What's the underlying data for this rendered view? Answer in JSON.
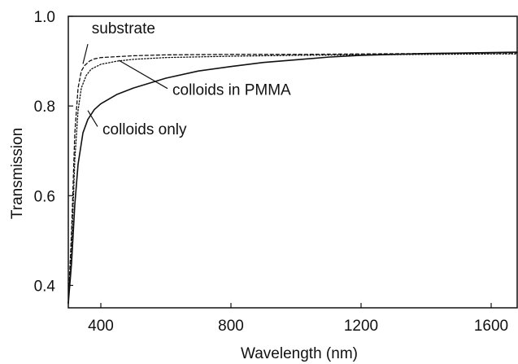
{
  "chart_data": {
    "type": "line",
    "xlabel": "Wavelength (nm)",
    "ylabel": "Transmission",
    "xlim": [
      300,
      1680
    ],
    "ylim": [
      0.35,
      1.0
    ],
    "x_ticks": [
      400,
      800,
      1200,
      1600
    ],
    "x_tick_labels": [
      "400",
      "800",
      "1200",
      "1600"
    ],
    "y_ticks": [
      0.4,
      0.6,
      0.8,
      1.0
    ],
    "y_tick_labels": [
      "0.4",
      "0.6",
      "0.8",
      "1.0"
    ],
    "grid": false,
    "series": [
      {
        "name": "substrate",
        "line_style": "dashed",
        "color": "#111111",
        "x": [
          300,
          310,
          320,
          330,
          340,
          350,
          365,
          380,
          400,
          450,
          500,
          600,
          800,
          1000,
          1200,
          1400,
          1600,
          1680
        ],
        "y": [
          0.36,
          0.52,
          0.74,
          0.84,
          0.878,
          0.89,
          0.9,
          0.905,
          0.908,
          0.91,
          0.912,
          0.914,
          0.915,
          0.915,
          0.916,
          0.917,
          0.918,
          0.918
        ]
      },
      {
        "name": "colloids in PMMA",
        "line_style": "dotted",
        "color": "#111111",
        "x": [
          300,
          310,
          320,
          330,
          340,
          355,
          370,
          400,
          450,
          500,
          600,
          800,
          1000,
          1200,
          1400,
          1600,
          1680
        ],
        "y": [
          0.36,
          0.48,
          0.68,
          0.79,
          0.84,
          0.868,
          0.882,
          0.893,
          0.9,
          0.904,
          0.908,
          0.911,
          0.913,
          0.914,
          0.915,
          0.916,
          0.916
        ]
      },
      {
        "name": "colloids only",
        "line_style": "solid",
        "color": "#111111",
        "x": [
          300,
          310,
          320,
          330,
          345,
          360,
          380,
          400,
          450,
          500,
          600,
          700,
          800,
          900,
          1000,
          1100,
          1200,
          1300,
          1400,
          1500,
          1600,
          1680
        ],
        "y": [
          0.36,
          0.45,
          0.58,
          0.67,
          0.74,
          0.77,
          0.792,
          0.805,
          0.826,
          0.84,
          0.862,
          0.878,
          0.888,
          0.897,
          0.903,
          0.909,
          0.913,
          0.915,
          0.917,
          0.918,
          0.919,
          0.92
        ]
      }
    ],
    "annotations": [
      {
        "text": "substrate",
        "label_x": 372,
        "label_y": 0.962,
        "line_from_x": 360,
        "line_from_y": 0.938,
        "line_to_x": 345,
        "line_to_y": 0.894
      },
      {
        "text": "colloids in PMMA",
        "label_x": 620,
        "label_y": 0.825,
        "line_from_x": 605,
        "line_from_y": 0.839,
        "line_to_x": 455,
        "line_to_y": 0.902
      },
      {
        "text": "colloids only",
        "label_x": 405,
        "label_y": 0.737,
        "line_from_x": 390,
        "line_from_y": 0.754,
        "line_to_x": 360,
        "line_to_y": 0.79
      }
    ]
  }
}
